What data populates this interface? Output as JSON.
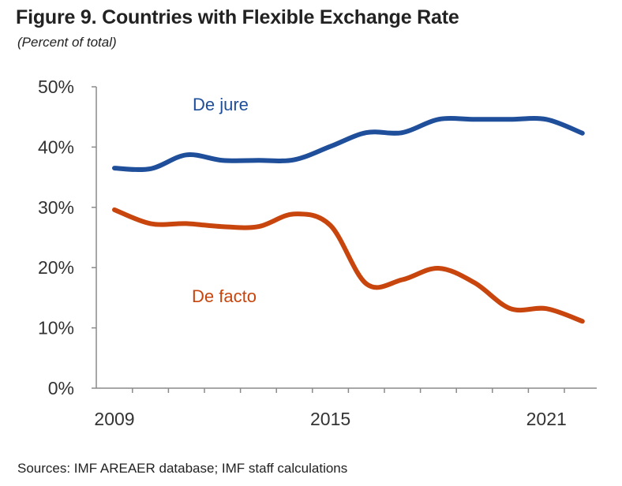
{
  "title": "Figure 9. Countries with Flexible Exchange Rate",
  "subtitle": "(Percent of total)",
  "source": "Sources: IMF AREAER database; IMF staff calculations",
  "chart_data": {
    "type": "line",
    "title": "Figure 9. Countries with Flexible Exchange Rate",
    "ylabel": "Percent of total",
    "xlabel": "",
    "x": [
      2009,
      2010,
      2011,
      2012,
      2013,
      2014,
      2015,
      2016,
      2017,
      2018,
      2019,
      2020,
      2021,
      2022
    ],
    "ylim": [
      0,
      50
    ],
    "yticks": [
      0,
      10,
      20,
      30,
      40,
      50
    ],
    "ytick_labels": [
      "0%",
      "10%",
      "20%",
      "30%",
      "40%",
      "50%"
    ],
    "xtick_labels": [
      "2009",
      "2015",
      "2021"
    ],
    "grid": false,
    "series": [
      {
        "name": "De jure",
        "color": "#1f4e9a",
        "values": [
          36.5,
          36.4,
          38.7,
          37.8,
          37.8,
          37.9,
          40.1,
          42.4,
          42.4,
          44.6,
          44.6,
          44.6,
          44.6,
          42.3
        ]
      },
      {
        "name": "De facto",
        "color": "#c8450e",
        "values": [
          29.6,
          27.3,
          27.3,
          26.8,
          26.8,
          28.9,
          27.0,
          17.3,
          18.0,
          19.9,
          17.5,
          13.2,
          13.2,
          11.1
        ]
      }
    ]
  }
}
